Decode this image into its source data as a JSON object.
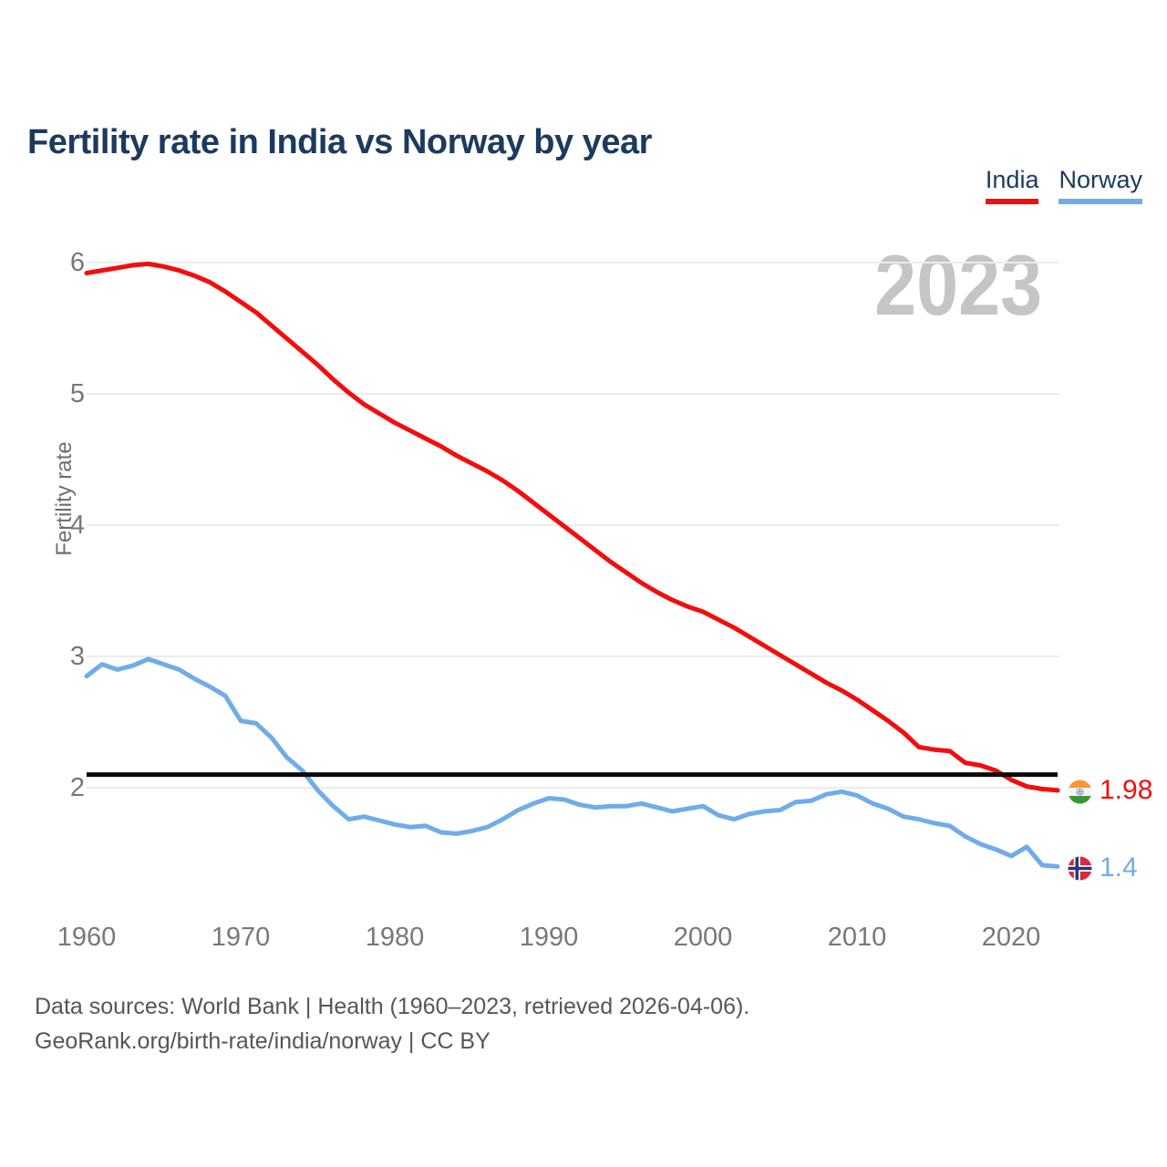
{
  "title": "Fertility rate in India vs Norway by year",
  "legend": {
    "india": "India",
    "norway": "Norway"
  },
  "watermark": "2023",
  "y_axis": {
    "label": "Fertility rate",
    "ticks": [
      "6",
      "5",
      "4",
      "3",
      "2"
    ]
  },
  "x_axis": {
    "ticks": [
      "1960",
      "1970",
      "1980",
      "1990",
      "2000",
      "2010",
      "2020"
    ]
  },
  "end_labels": {
    "india_value": "1.98",
    "norway_value": "1.4"
  },
  "footer": {
    "line1": "Data sources: World Bank | Health (1960–2023, retrieved 2026-04-06).",
    "line2": "GeoRank.org/birth-rate/india/norway | CC BY"
  },
  "colors": {
    "india": "#f40d0d",
    "norway": "#70ace8",
    "replacement_line": "#0a0a0a",
    "gridline": "#ececec",
    "title_text": "#1c3a5e",
    "axis_text": "#787878",
    "watermark_text": "#c5c5c5"
  },
  "chart_data": {
    "type": "line",
    "title": "Fertility rate in India vs Norway by year",
    "xlabel": "",
    "ylabel": "Fertility rate",
    "ylim": [
      1.2,
      6.2
    ],
    "y_ticks": [
      2,
      3,
      4,
      5,
      6
    ],
    "x_ticks": [
      1960,
      1970,
      1980,
      1990,
      2000,
      2010,
      2020
    ],
    "grid": "horizontal",
    "legend_position": "top-right",
    "replacement_level": 2.1,
    "x": [
      1960,
      1961,
      1962,
      1963,
      1964,
      1965,
      1966,
      1967,
      1968,
      1969,
      1970,
      1971,
      1972,
      1973,
      1974,
      1975,
      1976,
      1977,
      1978,
      1979,
      1980,
      1981,
      1982,
      1983,
      1984,
      1985,
      1986,
      1987,
      1988,
      1989,
      1990,
      1991,
      1992,
      1993,
      1994,
      1995,
      1996,
      1997,
      1998,
      1999,
      2000,
      2001,
      2002,
      2003,
      2004,
      2005,
      2006,
      2007,
      2008,
      2009,
      2010,
      2011,
      2012,
      2013,
      2014,
      2015,
      2016,
      2017,
      2018,
      2019,
      2020,
      2021,
      2022,
      2023
    ],
    "series": [
      {
        "name": "India",
        "color": "#f40d0d",
        "end_label": "1.98",
        "values": [
          5.92,
          5.94,
          5.96,
          5.98,
          5.99,
          5.97,
          5.94,
          5.9,
          5.85,
          5.78,
          5.7,
          5.62,
          5.52,
          5.42,
          5.32,
          5.22,
          5.11,
          5.01,
          4.92,
          4.85,
          4.78,
          4.72,
          4.66,
          4.6,
          4.53,
          4.47,
          4.41,
          4.34,
          4.26,
          4.17,
          4.08,
          3.99,
          3.9,
          3.81,
          3.72,
          3.64,
          3.56,
          3.49,
          3.43,
          3.38,
          3.34,
          3.28,
          3.22,
          3.15,
          3.08,
          3.01,
          2.94,
          2.87,
          2.8,
          2.74,
          2.67,
          2.59,
          2.51,
          2.42,
          2.31,
          2.29,
          2.28,
          2.19,
          2.17,
          2.13,
          2.06,
          2.01,
          1.99,
          1.98
        ]
      },
      {
        "name": "Norway",
        "color": "#70ace8",
        "end_label": "1.4",
        "values": [
          2.85,
          2.94,
          2.9,
          2.93,
          2.98,
          2.94,
          2.9,
          2.83,
          2.77,
          2.7,
          2.51,
          2.49,
          2.38,
          2.23,
          2.13,
          1.98,
          1.86,
          1.76,
          1.78,
          1.75,
          1.72,
          1.7,
          1.71,
          1.66,
          1.65,
          1.67,
          1.7,
          1.76,
          1.83,
          1.88,
          1.92,
          1.91,
          1.87,
          1.85,
          1.86,
          1.86,
          1.88,
          1.85,
          1.82,
          1.84,
          1.86,
          1.79,
          1.76,
          1.8,
          1.82,
          1.83,
          1.89,
          1.9,
          1.95,
          1.97,
          1.94,
          1.88,
          1.84,
          1.78,
          1.76,
          1.73,
          1.71,
          1.63,
          1.57,
          1.53,
          1.48,
          1.55,
          1.41,
          1.4
        ]
      }
    ]
  }
}
